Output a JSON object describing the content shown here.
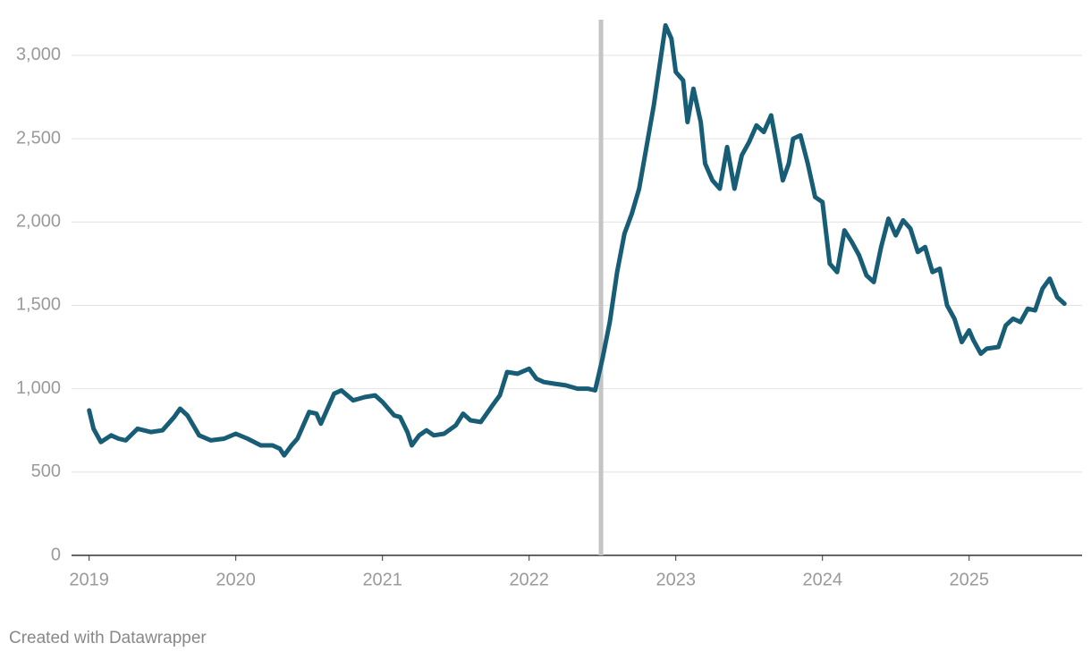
{
  "chart_data": {
    "type": "line",
    "footer": "Created with Datawrapper",
    "x": [
      2019.0,
      2019.03,
      2019.08,
      2019.15,
      2019.2,
      2019.25,
      2019.33,
      2019.42,
      2019.5,
      2019.58,
      2019.62,
      2019.67,
      2019.75,
      2019.83,
      2019.92,
      2020.0,
      2020.08,
      2020.17,
      2020.25,
      2020.3,
      2020.33,
      2020.38,
      2020.42,
      2020.5,
      2020.55,
      2020.58,
      2020.67,
      2020.72,
      2020.8,
      2020.88,
      2020.95,
      2021.0,
      2021.08,
      2021.12,
      2021.17,
      2021.2,
      2021.25,
      2021.3,
      2021.35,
      2021.42,
      2021.5,
      2021.55,
      2021.6,
      2021.67,
      2021.75,
      2021.8,
      2021.85,
      2021.92,
      2022.0,
      2022.05,
      2022.1,
      2022.17,
      2022.25,
      2022.33,
      2022.4,
      2022.45,
      2022.5,
      2022.55,
      2022.6,
      2022.65,
      2022.7,
      2022.75,
      2022.8,
      2022.85,
      2022.9,
      2022.93,
      2022.97,
      2023.0,
      2023.05,
      2023.08,
      2023.12,
      2023.17,
      2023.2,
      2023.25,
      2023.3,
      2023.35,
      2023.4,
      2023.45,
      2023.5,
      2023.55,
      2023.6,
      2023.65,
      2023.7,
      2023.73,
      2023.77,
      2023.8,
      2023.85,
      2023.9,
      2023.95,
      2024.0,
      2024.05,
      2024.1,
      2024.15,
      2024.2,
      2024.25,
      2024.3,
      2024.35,
      2024.4,
      2024.45,
      2024.5,
      2024.55,
      2024.6,
      2024.65,
      2024.7,
      2024.75,
      2024.8,
      2024.85,
      2024.9,
      2024.95,
      2025.0,
      2025.03,
      2025.08,
      2025.12,
      2025.2,
      2025.25,
      2025.3,
      2025.35,
      2025.4,
      2025.45,
      2025.5,
      2025.55,
      2025.6,
      2025.65
    ],
    "series": [
      {
        "color": "#175d75",
        "values": [
          870,
          760,
          680,
          720,
          700,
          690,
          760,
          740,
          750,
          830,
          880,
          840,
          720,
          690,
          700,
          730,
          700,
          660,
          660,
          640,
          600,
          660,
          700,
          860,
          850,
          790,
          970,
          990,
          930,
          950,
          960,
          920,
          840,
          830,
          740,
          660,
          720,
          750,
          720,
          730,
          780,
          850,
          810,
          800,
          900,
          960,
          1100,
          1090,
          1120,
          1060,
          1040,
          1030,
          1020,
          1000,
          1000,
          990,
          1180,
          1400,
          1700,
          1930,
          2050,
          2200,
          2450,
          2700,
          3000,
          3180,
          3100,
          2900,
          2850,
          2600,
          2800,
          2600,
          2350,
          2250,
          2200,
          2450,
          2200,
          2400,
          2480,
          2580,
          2540,
          2640,
          2400,
          2250,
          2350,
          2500,
          2520,
          2350,
          2150,
          2120,
          1750,
          1700,
          1950,
          1880,
          1800,
          1680,
          1640,
          1850,
          2020,
          1920,
          2010,
          1960,
          1820,
          1850,
          1700,
          1720,
          1500,
          1420,
          1280,
          1350,
          1290,
          1210,
          1240,
          1250,
          1380,
          1420,
          1400,
          1480,
          1470,
          1600,
          1660,
          1550,
          1510
        ]
      }
    ],
    "vline": 2022.49,
    "vline_color": "#c4c4c4",
    "xlim": [
      2018.88,
      2025.77
    ],
    "xticks": [
      2019,
      2020,
      2021,
      2022,
      2023,
      2024,
      2025
    ],
    "ylim": [
      0,
      3300
    ],
    "yticks": [
      0,
      500,
      {
        "value": 1000,
        "label": "1,000"
      },
      {
        "value": 1500,
        "label": "1,500"
      },
      {
        "value": 2000,
        "label": "2,000"
      },
      {
        "value": 2500,
        "label": "2,500"
      },
      {
        "value": 3000,
        "label": "3,000"
      }
    ],
    "grid": true
  }
}
